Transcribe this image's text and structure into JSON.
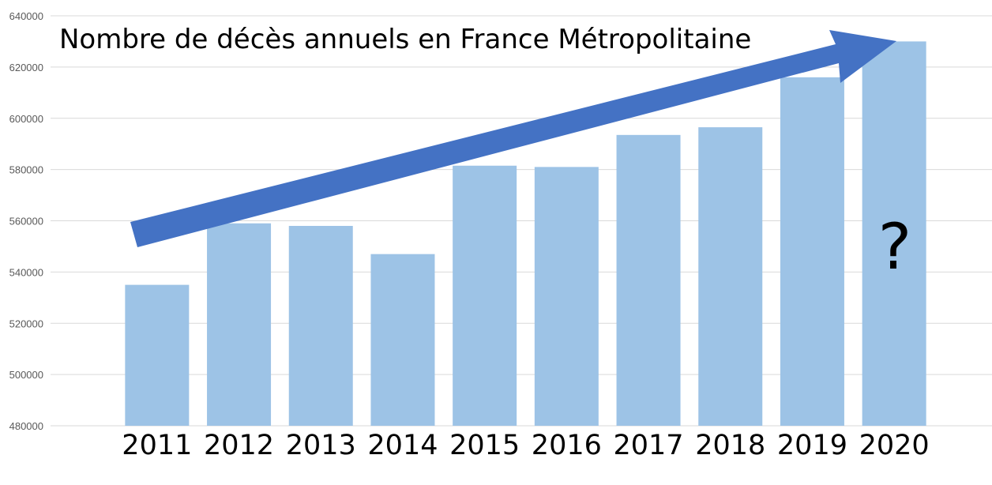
{
  "chart_data": {
    "type": "bar",
    "title": "Nombre de décès annuels en France Métropolitaine",
    "xlabel": "",
    "ylabel": "",
    "categories": [
      "2011",
      "2012",
      "2013",
      "2014",
      "2015",
      "2016",
      "2017",
      "2018",
      "2019",
      "2020"
    ],
    "values": [
      535000,
      559000,
      558000,
      547000,
      581500,
      581000,
      593500,
      596500,
      616000,
      630000
    ],
    "ylim": [
      480000,
      640000
    ],
    "yticks": [
      "480000",
      "500000",
      "520000",
      "540000",
      "560000",
      "580000",
      "600000",
      "620000",
      "640000"
    ],
    "grid": true,
    "legend": "none",
    "bar_color": "#9DC3E6",
    "trend_arrow_color": "#4472C4",
    "annotation": "?"
  }
}
